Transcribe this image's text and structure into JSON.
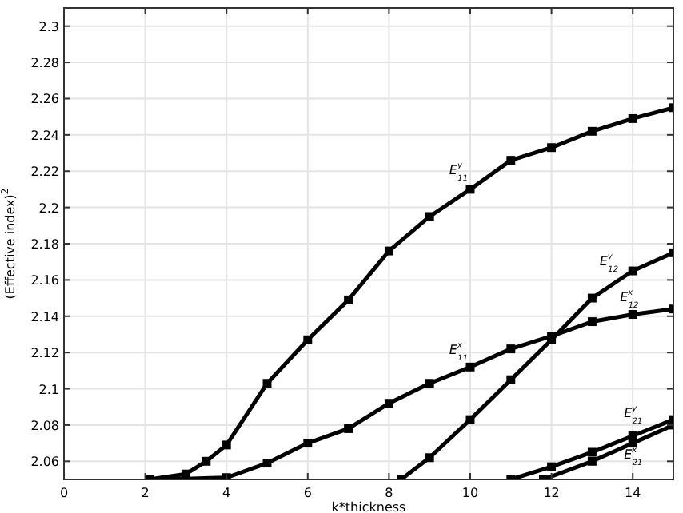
{
  "chart_data": {
    "type": "line",
    "xlabel": "k*thickness",
    "ylabel": "(Effective index)$^{2}$",
    "xlim": [
      0,
      15
    ],
    "ylim": [
      2.05,
      2.31
    ],
    "xticks": [
      0,
      2,
      4,
      6,
      8,
      10,
      12,
      14
    ],
    "yticks": [
      2.06,
      2.08,
      2.1,
      2.12,
      2.14,
      2.16,
      2.18,
      2.2,
      2.22,
      2.24,
      2.26,
      2.28,
      2.3
    ],
    "grid": true,
    "marker": "square",
    "line_style": "solid",
    "series": [
      {
        "color": "#000000",
        "x": [
          2.1,
          3,
          3.5,
          4,
          5,
          6,
          7,
          8,
          9,
          10,
          11,
          12,
          13,
          14,
          15
        ],
        "values": [
          2.05,
          2.053,
          2.06,
          2.069,
          2.103,
          2.127,
          2.149,
          2.176,
          2.195,
          2.21,
          2.226,
          2.233,
          2.242,
          2.249,
          2.255
        ]
      },
      {
        "color": "#000000",
        "x": [
          2.5,
          4,
          5,
          6,
          7,
          8,
          9,
          10,
          11,
          12,
          13,
          14,
          15
        ],
        "values": [
          2.05,
          2.051,
          2.059,
          2.07,
          2.078,
          2.092,
          2.103,
          2.112,
          2.122,
          2.129,
          2.137,
          2.141,
          2.144
        ]
      },
      {
        "color": "#000000",
        "x": [
          8.3,
          9,
          10,
          11,
          12,
          13,
          14,
          15
        ],
        "values": [
          2.05,
          2.062,
          2.083,
          2.105,
          2.127,
          2.15,
          2.165,
          2.175
        ]
      },
      {
        "color": "#000000",
        "x": [
          11,
          12,
          13,
          14,
          15
        ],
        "values": [
          2.05,
          2.057,
          2.065,
          2.074,
          2.083
        ]
      },
      {
        "color": "#000000",
        "x": [
          11.8,
          13,
          14,
          15
        ],
        "values": [
          2.05,
          2.06,
          2.07,
          2.08
        ]
      }
    ],
    "annotations": [
      {
        "text": "E$^{y}$$_{11}$",
        "x": 10.1,
        "y": 2.212
      },
      {
        "text": "E$^{x}$$_{11}$",
        "x": 10.1,
        "y": 2.113
      },
      {
        "text": "E$^{y}$$_{12}$",
        "x": 13.8,
        "y": 2.162
      },
      {
        "text": "E$^{x}$$_{12}$",
        "x": 14.3,
        "y": 2.142
      },
      {
        "text": "E$^{y}$$_{21}$",
        "x": 14.4,
        "y": 2.078
      },
      {
        "text": "E$^{x}$$_{21}$",
        "x": 14.4,
        "y": 2.074
      }
    ]
  }
}
